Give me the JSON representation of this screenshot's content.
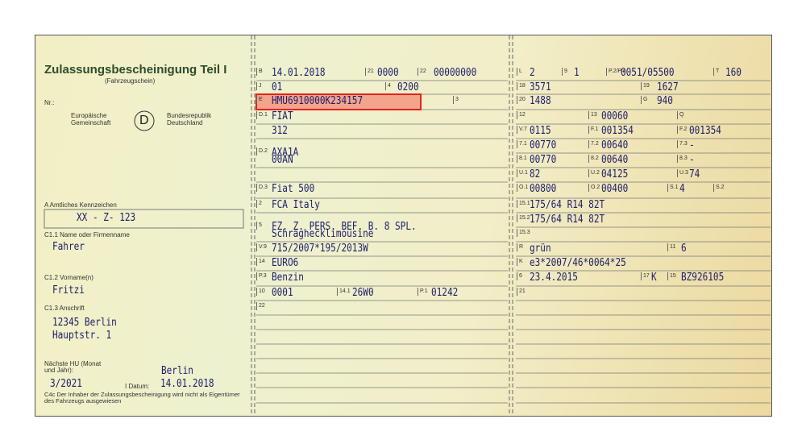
{
  "header": {
    "title": "Zulassungsbescheinigung Teil I",
    "subtitle": "(Fahrzeugschein)"
  },
  "left": {
    "nr_label": "Nr.:",
    "eu": "Europäische Gemeinschaft",
    "country_code": "D",
    "country": "Bundesrepublik Deutschland",
    "plate_label": "A Amtliches Kennzeichen",
    "plate": "XX - Z- 123",
    "name_label": "C1.1 Name oder Firmenname",
    "name": "Fahrer",
    "first_name_label": "C1.2 Vorname(n)",
    "first_name": "Fritzi",
    "address_label": "C1.3 Anschrift",
    "address": [
      "12345 Berlin",
      "Hauptstr. 1"
    ],
    "hu_label": "Nächste HU (Monat und Jahr):",
    "hu": "3/2021",
    "city": "Berlin",
    "date_label": "I Datum:",
    "date": "14.01.2018",
    "note": "C4c Der Inhaber der Zulassungsbescheinigung wird nicht als Eigentümer des Fahrzeugs ausgewiesen"
  },
  "middle": {
    "cells": [
      {
        "code": "B",
        "value": "14.01.2018"
      },
      {
        "code": "21",
        "value": "0000"
      },
      {
        "code": "22",
        "value": "00000000"
      },
      {
        "code": "J",
        "value": "01"
      },
      {
        "code": "4",
        "value": "0200"
      },
      {
        "code": "E",
        "value": "HMU6910000K234157"
      },
      {
        "code": "3"
      },
      {
        "code": "D.1",
        "value": "FIAT"
      },
      {
        "value": "312"
      },
      {
        "code": "D.2",
        "value": "AXA1A"
      },
      {
        "value": "00AN"
      },
      {
        "code": "D.3",
        "value": "Fiat 500"
      },
      {
        "code": "2",
        "value": "FCA Italy"
      },
      {
        "code": "5",
        "value": "FZ. Z. PERS. BEF. B. 8 SPL."
      },
      {
        "value": "Schräghecklimousine"
      },
      {
        "code": "V.9",
        "value": "715/2007*195/2013W"
      },
      {
        "code": "14",
        "value": "EURO6"
      },
      {
        "code": "P.3",
        "value": "Benzin"
      },
      {
        "code": "10",
        "value": "0001"
      },
      {
        "code": "14.1",
        "value": "26W0"
      },
      {
        "code": "P.1",
        "value": "01242"
      },
      {
        "code": "22"
      }
    ]
  },
  "right": {
    "cells": [
      {
        "code": "L",
        "value": "2"
      },
      {
        "code": "9",
        "value": "1"
      },
      {
        "code": "P.2/P.4",
        "value": "0051/05500"
      },
      {
        "code": "T",
        "value": "160"
      },
      {
        "code": "18",
        "value": "3571"
      },
      {
        "code": "19",
        "value": "1627"
      },
      {
        "code": "20",
        "value": "1488"
      },
      {
        "code": "G",
        "value": "940"
      },
      {
        "code": "12"
      },
      {
        "code": "13",
        "value": "00060"
      },
      {
        "code": "Q"
      },
      {
        "code": "V.7",
        "value": "0115"
      },
      {
        "code": "F.1",
        "value": "001354"
      },
      {
        "code": "F.2",
        "value": "001354"
      },
      {
        "code": "7.1",
        "value": "00770"
      },
      {
        "code": "7.2",
        "value": "00640"
      },
      {
        "code": "7.3",
        "value": "-"
      },
      {
        "code": "8.1",
        "value": "00770"
      },
      {
        "code": "8.2",
        "value": "00640"
      },
      {
        "code": "8.3",
        "value": "-"
      },
      {
        "code": "U.1",
        "value": "82"
      },
      {
        "code": "U.2",
        "value": "04125"
      },
      {
        "code": "U.3",
        "value": "74"
      },
      {
        "code": "O.1",
        "value": "00800"
      },
      {
        "code": "O.2",
        "value": "00400"
      },
      {
        "code": "S.1",
        "value": "4"
      },
      {
        "code": "S.2"
      },
      {
        "code": "15.1",
        "value": "175/64 R14 82T"
      },
      {
        "code": "15.2",
        "value": "175/64 R14 82T"
      },
      {
        "code": "15.3"
      },
      {
        "code": "R",
        "value": "grün"
      },
      {
        "code": "11",
        "value": "6"
      },
      {
        "code": "K",
        "value": "e3*2007/46*0064*25"
      },
      {
        "code": "6",
        "value": "23.4.2015"
      },
      {
        "code": "17",
        "value": "K"
      },
      {
        "code": "15",
        "value": "BZ926105"
      },
      {
        "code": "21"
      }
    ]
  }
}
